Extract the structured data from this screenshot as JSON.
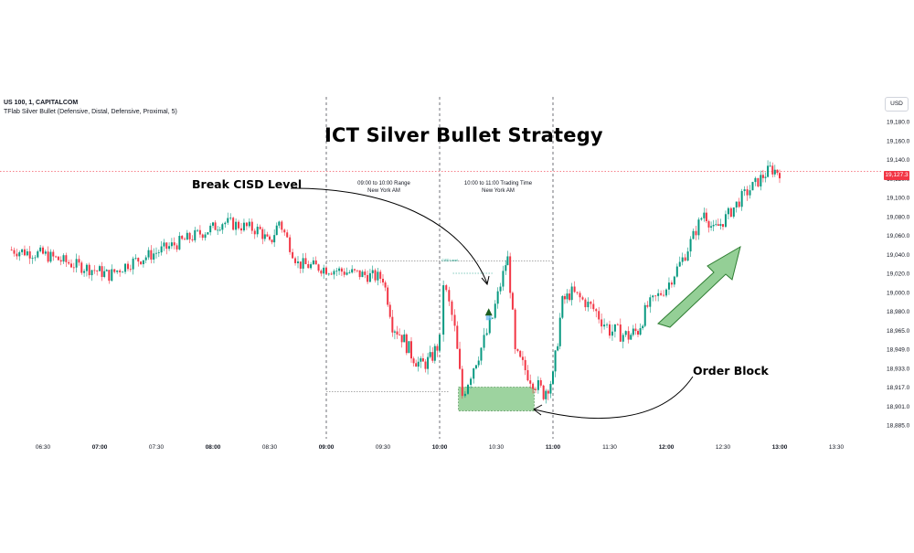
{
  "header": {
    "symbol": "US 100, 1, CAPITALCOM",
    "indicator": "TFlab Silver Bullet (Defensive, Distal, Defensive, Proximal, 5)"
  },
  "currency": "USD",
  "chart_data": {
    "type": "candlestick",
    "title": "ICT Silver Bullet Strategy",
    "x_ticks": [
      {
        "t": "06:30",
        "bold": false
      },
      {
        "t": "07:00",
        "bold": true
      },
      {
        "t": "07:30",
        "bold": false
      },
      {
        "t": "08:00",
        "bold": true
      },
      {
        "t": "08:30",
        "bold": false
      },
      {
        "t": "09:00",
        "bold": true
      },
      {
        "t": "09:30",
        "bold": false
      },
      {
        "t": "10:00",
        "bold": true
      },
      {
        "t": "10:30",
        "bold": false
      },
      {
        "t": "11:00",
        "bold": true
      },
      {
        "t": "11:30",
        "bold": false
      },
      {
        "t": "12:00",
        "bold": true
      },
      {
        "t": "12:30",
        "bold": false
      },
      {
        "t": "13:00",
        "bold": true
      },
      {
        "t": "13:30",
        "bold": false
      }
    ],
    "y_ticks": [
      "19,180.0",
      "19,160.0",
      "19,140.0",
      "19,120.0",
      "19,100.0",
      "19,080.0",
      "19,060.0",
      "19,040.0",
      "19,020.0",
      "19,000.0",
      "18,980.0",
      "18,965.0",
      "18,949.0",
      "18,933.0",
      "18,917.0",
      "18,901.0",
      "18,885.0"
    ],
    "last_price": "19,127.3",
    "up_color": "#089981",
    "down_color": "#f23645",
    "path": [
      [
        "06:12",
        19045
      ],
      [
        "06:30",
        19040
      ],
      [
        "06:45",
        19030
      ],
      [
        "07:00",
        19022
      ],
      [
        "07:05",
        19018
      ],
      [
        "07:15",
        19030
      ],
      [
        "07:30",
        19042
      ],
      [
        "07:45",
        19055
      ],
      [
        "08:00",
        19068
      ],
      [
        "08:05",
        19074
      ],
      [
        "08:15",
        19070
      ],
      [
        "08:25",
        19065
      ],
      [
        "08:30",
        19050
      ],
      [
        "08:35",
        19075
      ],
      [
        "08:45",
        19030
      ],
      [
        "09:00",
        19025
      ],
      [
        "09:15",
        19020
      ],
      [
        "09:30",
        19015
      ],
      [
        "09:35",
        18970
      ],
      [
        "09:40",
        18960
      ],
      [
        "09:45",
        18945
      ],
      [
        "09:50",
        18935
      ],
      [
        "09:55",
        18940
      ],
      [
        "10:00",
        18955
      ],
      [
        "10:02",
        19010
      ],
      [
        "10:08",
        18965
      ],
      [
        "10:12",
        18910
      ],
      [
        "10:18",
        18935
      ],
      [
        "10:22",
        18950
      ],
      [
        "10:28",
        18975
      ],
      [
        "10:35",
        19030
      ],
      [
        "10:36",
        19035
      ],
      [
        "10:40",
        18945
      ],
      [
        "10:48",
        18925
      ],
      [
        "10:55",
        18912
      ],
      [
        "11:00",
        18925
      ],
      [
        "11:05",
        18990
      ],
      [
        "11:10",
        19000
      ],
      [
        "11:20",
        18985
      ],
      [
        "11:30",
        18965
      ],
      [
        "11:40",
        18960
      ],
      [
        "11:45",
        18965
      ],
      [
        "11:50",
        18985
      ],
      [
        "12:00",
        19005
      ],
      [
        "12:10",
        19040
      ],
      [
        "12:20",
        19085
      ],
      [
        "12:25",
        19065
      ],
      [
        "12:30",
        19075
      ],
      [
        "12:40",
        19100
      ],
      [
        "12:50",
        19120
      ],
      [
        "12:55",
        19130
      ],
      [
        "13:00",
        19127
      ]
    ],
    "asian_high": 19033,
    "range_low": 18913,
    "cisd_level": 19020,
    "order_block": {
      "from": "10:10",
      "to": "10:50",
      "high": 18917,
      "low": 18897
    }
  },
  "annotations": {
    "break_cisd": "Break CISD Level",
    "order_block": "Order Block",
    "range_label_1": "09:00 to 10:00 Range",
    "range_sub_1": "New York AM",
    "range_label_2": "10:00 to 11:00 Trading Time",
    "range_sub_2": "New York AM",
    "cisd_small": "CISD Level"
  },
  "colors": {
    "grid": "#f0f3fa",
    "session_line": "#131722",
    "last_price_line": "#f23645",
    "order_block_fill": "#4caf50",
    "arrow_fill": "#4caf50"
  }
}
